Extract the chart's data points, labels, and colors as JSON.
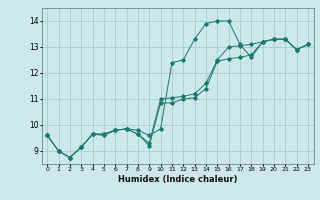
{
  "title": "",
  "xlabel": "Humidex (Indice chaleur)",
  "ylabel": "",
  "xlim": [
    -0.5,
    23.5
  ],
  "ylim": [
    8.5,
    14.5
  ],
  "xticks": [
    0,
    1,
    2,
    3,
    4,
    5,
    6,
    7,
    8,
    9,
    10,
    11,
    12,
    13,
    14,
    15,
    16,
    17,
    18,
    19,
    20,
    21,
    22,
    23
  ],
  "yticks": [
    9,
    10,
    11,
    12,
    13,
    14
  ],
  "background_color": "#cce8e8",
  "line_color": "#1a7a6e",
  "grid_color": "#aacccc",
  "series1": [
    [
      0,
      9.6
    ],
    [
      1,
      9.0
    ],
    [
      2,
      8.75
    ],
    [
      3,
      9.15
    ],
    [
      4,
      9.65
    ],
    [
      5,
      9.6
    ],
    [
      6,
      9.8
    ],
    [
      7,
      9.85
    ],
    [
      8,
      9.8
    ],
    [
      9,
      9.6
    ],
    [
      10,
      9.85
    ],
    [
      11,
      12.4
    ],
    [
      12,
      12.5
    ],
    [
      13,
      13.3
    ],
    [
      14,
      13.9
    ],
    [
      15,
      14.0
    ],
    [
      16,
      14.0
    ],
    [
      17,
      13.1
    ],
    [
      18,
      12.6
    ],
    [
      19,
      13.2
    ],
    [
      20,
      13.3
    ],
    [
      21,
      13.3
    ],
    [
      22,
      12.9
    ],
    [
      23,
      13.1
    ]
  ],
  "series2": [
    [
      0,
      9.6
    ],
    [
      1,
      9.0
    ],
    [
      2,
      8.75
    ],
    [
      3,
      9.15
    ],
    [
      4,
      9.65
    ],
    [
      5,
      9.65
    ],
    [
      6,
      9.8
    ],
    [
      7,
      9.85
    ],
    [
      8,
      9.65
    ],
    [
      9,
      9.3
    ],
    [
      10,
      11.0
    ],
    [
      11,
      11.05
    ],
    [
      12,
      11.1
    ],
    [
      13,
      11.2
    ],
    [
      14,
      11.6
    ],
    [
      15,
      12.5
    ],
    [
      16,
      13.0
    ],
    [
      17,
      13.05
    ],
    [
      18,
      13.1
    ],
    [
      19,
      13.2
    ],
    [
      20,
      13.3
    ],
    [
      21,
      13.3
    ],
    [
      22,
      12.9
    ],
    [
      23,
      13.1
    ]
  ],
  "series3": [
    [
      0,
      9.6
    ],
    [
      1,
      9.0
    ],
    [
      2,
      8.75
    ],
    [
      3,
      9.15
    ],
    [
      4,
      9.65
    ],
    [
      5,
      9.65
    ],
    [
      6,
      9.8
    ],
    [
      7,
      9.85
    ],
    [
      8,
      9.65
    ],
    [
      9,
      9.2
    ],
    [
      10,
      10.85
    ],
    [
      11,
      10.85
    ],
    [
      12,
      11.0
    ],
    [
      13,
      11.05
    ],
    [
      14,
      11.4
    ],
    [
      15,
      12.45
    ],
    [
      16,
      12.55
    ],
    [
      17,
      12.6
    ],
    [
      18,
      12.7
    ],
    [
      19,
      13.2
    ],
    [
      20,
      13.3
    ],
    [
      21,
      13.3
    ],
    [
      22,
      12.9
    ],
    [
      23,
      13.1
    ]
  ]
}
